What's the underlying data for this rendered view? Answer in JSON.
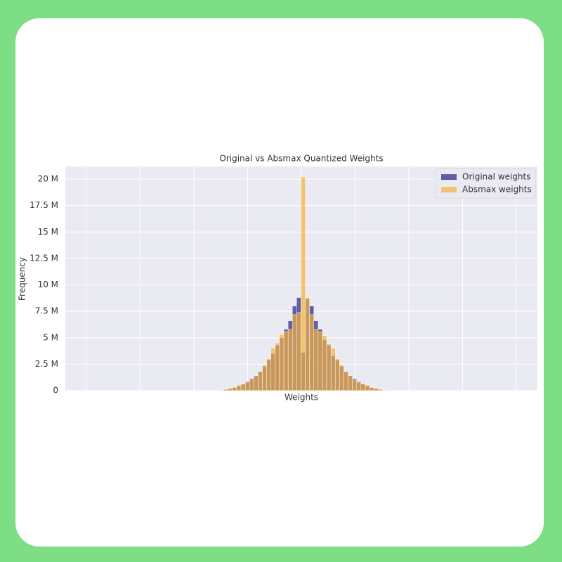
{
  "chart_data": {
    "type": "histogram",
    "title": "Original vs Absmax Quantized Weights",
    "x_label": "Weights",
    "y_label": "Frequency",
    "categories": [
      null,
      null,
      null,
      null,
      null,
      null,
      null,
      null,
      null,
      null,
      null,
      null,
      null,
      null,
      null,
      null,
      null,
      null,
      null,
      null,
      null,
      null,
      null,
      null,
      null,
      null,
      null,
      null,
      null,
      null,
      null,
      null,
      null,
      null,
      null,
      null,
      null,
      null,
      null,
      null,
      null
    ],
    "series": [
      {
        "name": "Original weights",
        "color": "#3b3b96",
        "values": [
          30000,
          60000,
          120000,
          200000,
          300000,
          450000,
          600000,
          850000,
          1100000,
          1400000,
          1800000,
          2300000,
          2900000,
          3500000,
          4300000,
          5000000,
          5800000,
          6600000,
          8000000,
          8800000,
          3600000,
          8700000,
          8000000,
          6600000,
          5800000,
          4800000,
          4300000,
          3300000,
          2900000,
          2300000,
          1800000,
          1400000,
          1100000,
          850000,
          600000,
          450000,
          300000,
          200000,
          120000,
          60000,
          30000
        ]
      },
      {
        "name": "Absmax weights",
        "color": "#f5b13d",
        "values": [
          30000,
          60000,
          120000,
          200000,
          300000,
          500000,
          650000,
          800000,
          1000000,
          1400000,
          1800000,
          2400000,
          3000000,
          4000000,
          4500000,
          5300000,
          5600000,
          5800000,
          7200000,
          7400000,
          20200000,
          8800000,
          7200000,
          5800000,
          5600000,
          5200000,
          4400000,
          4000000,
          3000000,
          2400000,
          1800000,
          1400000,
          1000000,
          800000,
          650000,
          500000,
          300000,
          200000,
          120000,
          60000,
          30000
        ]
      }
    ],
    "ylim": [
      0,
      21200000
    ],
    "yticks": [
      {
        "value": 0,
        "label": "0"
      },
      {
        "value": 2500000,
        "label": "2.5 M"
      },
      {
        "value": 5000000,
        "label": "5 M"
      },
      {
        "value": 7500000,
        "label": "7.5 M"
      },
      {
        "value": 10000000,
        "label": "10 M"
      },
      {
        "value": 12500000,
        "label": "12.5 M"
      },
      {
        "value": 15000000,
        "label": "15 M"
      },
      {
        "value": 17500000,
        "label": "17.5 M"
      },
      {
        "value": 20000000,
        "label": "20 M"
      }
    ],
    "grid": true,
    "legend": "upper right"
  }
}
